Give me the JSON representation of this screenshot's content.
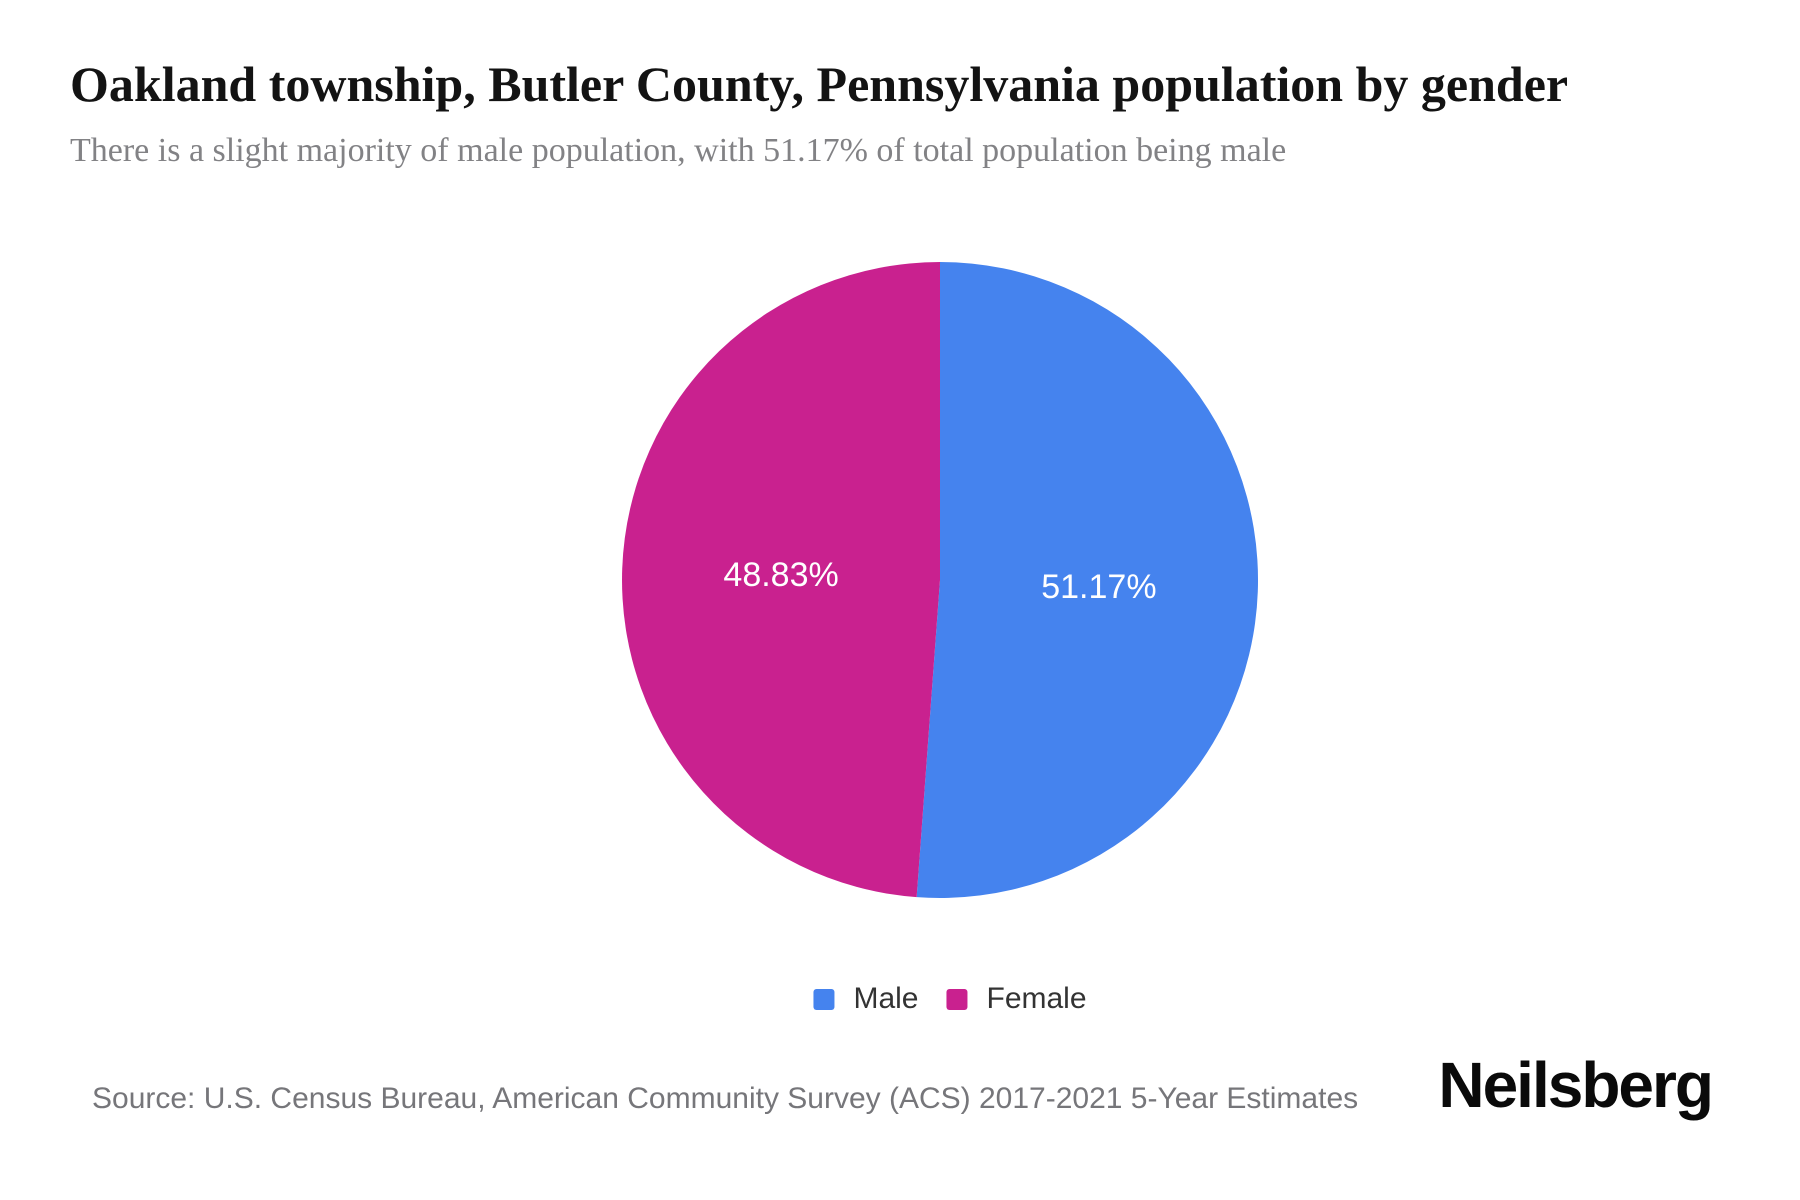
{
  "page": {
    "title": "Oakland township, Butler County, Pennsylvania population by gender",
    "subtitle": "There is a slight majority of male population, with 51.17% of total population being male",
    "source": "Source: U.S. Census Bureau, American Community Survey (ACS) 2017-2021 5-Year Estimates",
    "brand": "Neilsberg"
  },
  "chart_data": {
    "type": "pie",
    "title": "Oakland township, Butler County, Pennsylvania population by gender",
    "subtitle": "There is a slight majority of male population, with 51.17% of total population being male",
    "categories": [
      "Male",
      "Female"
    ],
    "values": [
      51.17,
      48.83
    ],
    "slice_labels": [
      "51.17%",
      "48.83%"
    ],
    "colors": [
      "#4583EE",
      "#C9218F"
    ],
    "label_color": "#ffffff",
    "start_angle_deg": 0,
    "direction": "clockwise",
    "legend_position": "bottom",
    "source": "Source: U.S. Census Bureau, American Community Survey (ACS) 2017-2021 5-Year Estimates"
  }
}
